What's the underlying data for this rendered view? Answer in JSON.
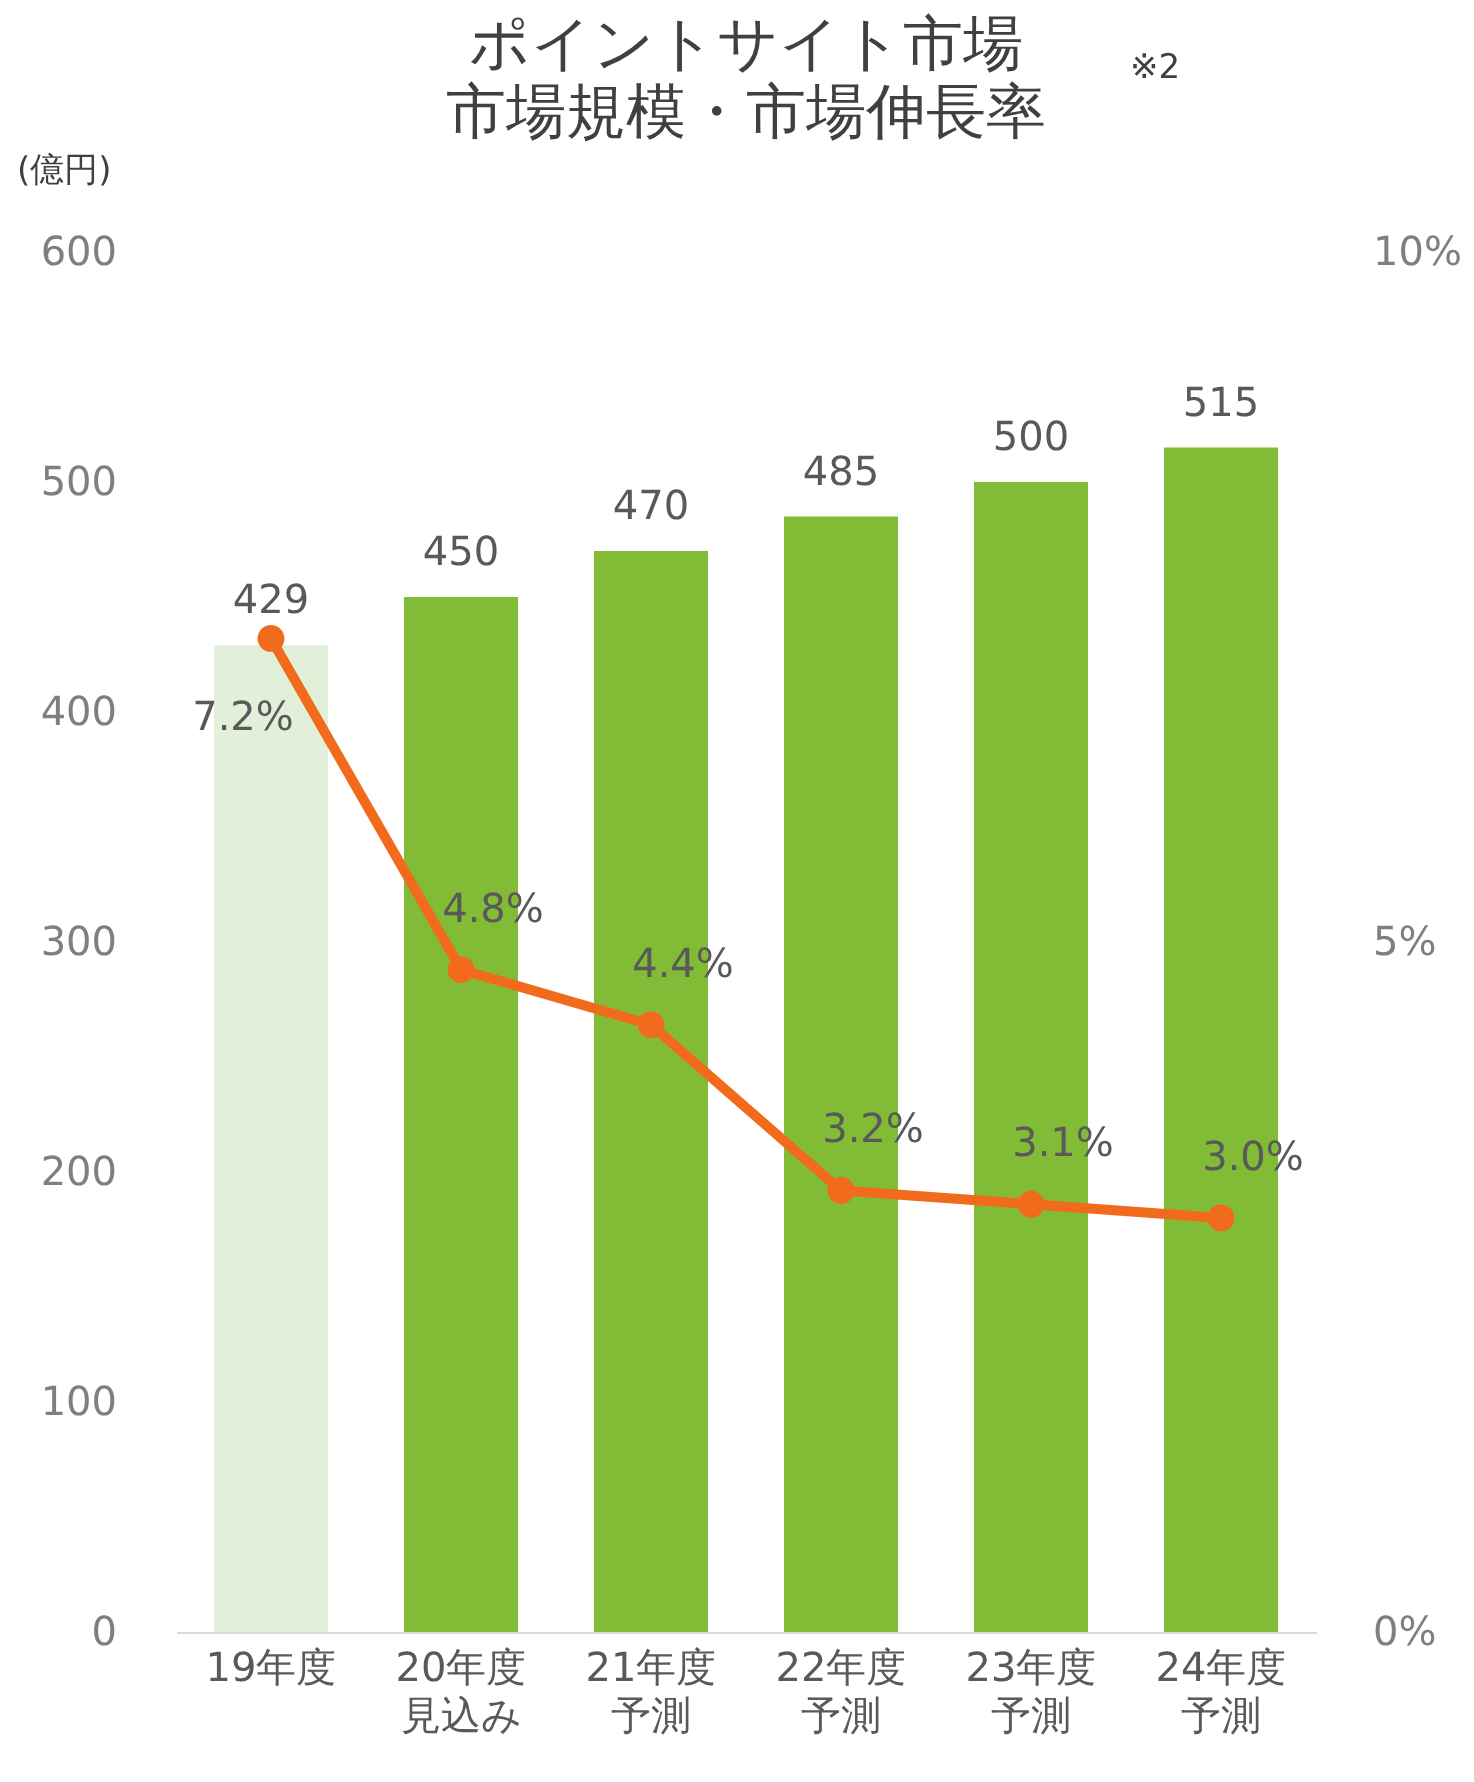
{
  "chart_data": {
    "type": "bar",
    "title": "ポイントサイト市場",
    "subtitle": "市場規模・市場伸長率",
    "annotations": [
      "※2"
    ],
    "ylabel": "(億円)",
    "categories": [
      "19年度",
      "20年度見込み",
      "21年度予測",
      "22年度予測",
      "23年度予測",
      "24年度予測"
    ],
    "series": [
      {
        "colors": [
          "#e2efd9",
          "#82bc37",
          "#82bc37",
          "#82bc37",
          "#82bc37",
          "#82bc37"
        ],
        "values": [
          429,
          450,
          470,
          485,
          500,
          515
        ],
        "value_labels": [
          "429",
          "450",
          "470",
          "485",
          "500",
          "515"
        ]
      },
      {
        "type": "line",
        "axis": "y2",
        "color": "#f26b1d",
        "values": [
          7.2,
          4.8,
          4.4,
          3.2,
          3.1,
          3.0
        ],
        "value_labels": [
          "7.2%",
          "4.8%",
          "4.4%",
          "3.2%",
          "3.1%",
          "3.0%"
        ]
      }
    ],
    "ylim": [
      0,
      600
    ],
    "yticks": [
      0,
      100,
      200,
      300,
      400,
      500,
      600
    ],
    "y2lim": [
      0,
      10
    ],
    "y2ticks": [
      {
        "value": 0,
        "label": "0%"
      },
      {
        "value": 5,
        "label": "5%"
      },
      {
        "value": 10,
        "label": "10%"
      }
    ],
    "marker": "circle",
    "grid": false
  }
}
